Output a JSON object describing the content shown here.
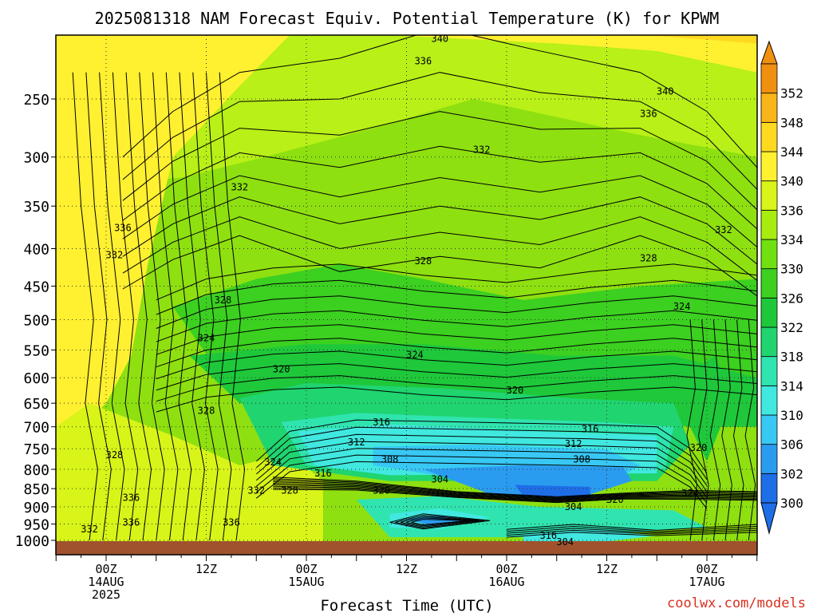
{
  "chart_data": {
    "type": "heatmap",
    "title": "2025081318 NAM Forecast Equiv. Potential Temperature (K) for KPWM",
    "xlabel": "Forecast Time (UTC)",
    "ylabel": "",
    "y_scale": "log-pressure",
    "ylim": [
      1000,
      200
    ],
    "yticks": [
      250,
      300,
      350,
      400,
      450,
      500,
      550,
      600,
      650,
      700,
      750,
      800,
      850,
      900,
      950,
      1000
    ],
    "xticks": [
      {
        "hour": 6,
        "lines": [
          "00Z",
          "14AUG",
          "2025"
        ]
      },
      {
        "hour": 18,
        "lines": [
          "12Z"
        ]
      },
      {
        "hour": 30,
        "lines": [
          "00Z",
          "15AUG"
        ]
      },
      {
        "hour": 42,
        "lines": [
          "12Z"
        ]
      },
      {
        "hour": 54,
        "lines": [
          "00Z",
          "16AUG"
        ]
      },
      {
        "hour": 66,
        "lines": [
          "12Z"
        ]
      },
      {
        "hour": 78,
        "lines": [
          "00Z",
          "17AUG"
        ]
      }
    ],
    "xlim": [
      0,
      84
    ],
    "grid": true,
    "colorbar": {
      "labels": [
        300,
        302,
        306,
        310,
        314,
        318,
        322,
        326,
        330,
        334,
        336,
        340,
        344,
        348,
        352
      ],
      "colors": [
        "#1e6ee8",
        "#2a9cf0",
        "#38c8f4",
        "#40e8e0",
        "#30e4b0",
        "#20d470",
        "#1ec83a",
        "#3cd020",
        "#70e010",
        "#a8ec10",
        "#d8f418",
        "#fff030",
        "#ffd820",
        "#f8b418",
        "#f09010"
      ],
      "position": "right"
    },
    "labeled_contours": [
      {
        "value": 340,
        "hour": 46,
        "p": 207
      },
      {
        "value": 336,
        "hour": 44,
        "p": 222
      },
      {
        "value": 340,
        "hour": 73,
        "p": 244
      },
      {
        "value": 336,
        "hour": 71,
        "p": 262
      },
      {
        "value": 332,
        "hour": 51,
        "p": 293
      },
      {
        "value": 332,
        "hour": 22,
        "p": 330
      },
      {
        "value": 336,
        "hour": 8,
        "p": 375
      },
      {
        "value": 332,
        "hour": 7,
        "p": 408
      },
      {
        "value": 332,
        "hour": 80,
        "p": 377
      },
      {
        "value": 328,
        "hour": 44,
        "p": 416
      },
      {
        "value": 328,
        "hour": 71,
        "p": 412
      },
      {
        "value": 328,
        "hour": 20,
        "p": 470
      },
      {
        "value": 324,
        "hour": 75,
        "p": 480
      },
      {
        "value": 324,
        "hour": 18,
        "p": 530
      },
      {
        "value": 324,
        "hour": 43,
        "p": 558
      },
      {
        "value": 320,
        "hour": 27,
        "p": 584
      },
      {
        "value": 320,
        "hour": 55,
        "p": 624
      },
      {
        "value": 328,
        "hour": 18,
        "p": 665
      },
      {
        "value": 316,
        "hour": 39,
        "p": 690
      },
      {
        "value": 316,
        "hour": 64,
        "p": 705
      },
      {
        "value": 312,
        "hour": 36,
        "p": 735
      },
      {
        "value": 312,
        "hour": 62,
        "p": 738
      },
      {
        "value": 320,
        "hour": 77,
        "p": 748
      },
      {
        "value": 328,
        "hour": 7,
        "p": 765
      },
      {
        "value": 308,
        "hour": 40,
        "p": 775
      },
      {
        "value": 308,
        "hour": 63,
        "p": 775
      },
      {
        "value": 324,
        "hour": 26,
        "p": 782
      },
      {
        "value": 316,
        "hour": 32,
        "p": 810
      },
      {
        "value": 304,
        "hour": 46,
        "p": 825
      },
      {
        "value": 332,
        "hour": 24,
        "p": 855
      },
      {
        "value": 328,
        "hour": 28,
        "p": 855
      },
      {
        "value": 320,
        "hour": 39,
        "p": 855
      },
      {
        "value": 324,
        "hour": 76,
        "p": 862
      },
      {
        "value": 336,
        "hour": 9,
        "p": 875
      },
      {
        "value": 320,
        "hour": 67,
        "p": 880
      },
      {
        "value": 304,
        "hour": 62,
        "p": 900
      },
      {
        "value": 336,
        "hour": 9,
        "p": 945
      },
      {
        "value": 336,
        "hour": 21,
        "p": 945
      },
      {
        "value": 332,
        "hour": 4,
        "p": 965
      },
      {
        "value": 316,
        "hour": 59,
        "p": 985
      },
      {
        "value": 304,
        "hour": 61,
        "p": 1005
      }
    ]
  },
  "footer": "coolwx.com/models"
}
